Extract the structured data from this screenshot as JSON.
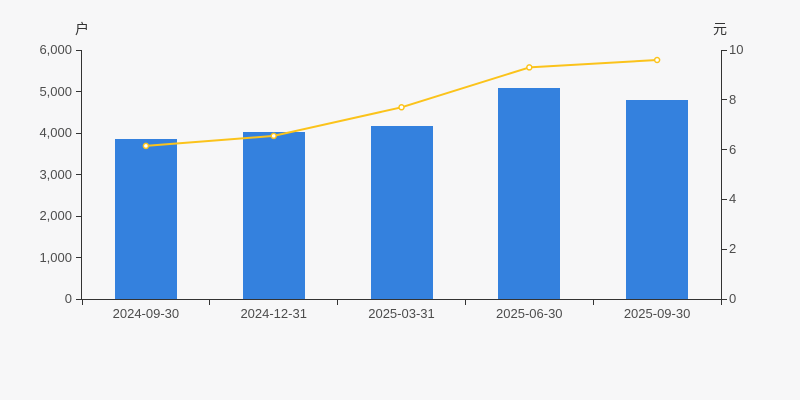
{
  "colors": {
    "background": "#f7f7f8",
    "bar": "#3481de",
    "line": "#fbc31b",
    "marker_fill": "#ffffff",
    "axis": "#333333",
    "text": "#4d4d4d",
    "unit_text": "#333333"
  },
  "chart_data": {
    "type": "combo-bar-line",
    "categories": [
      "2024-09-30",
      "2024-12-31",
      "2025-03-31",
      "2025-06-30",
      "2025-09-30"
    ],
    "series": [
      {
        "id": "bar-series",
        "type": "bar",
        "axis": "left",
        "color": "#3481de",
        "values": [
          3850,
          4020,
          4180,
          5080,
          4800
        ]
      },
      {
        "id": "line-series",
        "type": "line",
        "axis": "right",
        "color": "#fbc31b",
        "marker": "open-circle",
        "values": [
          6.15,
          6.55,
          7.7,
          9.3,
          9.6
        ]
      }
    ],
    "left_axis": {
      "unit": "户",
      "min": 0,
      "max": 6000,
      "tick_step": 1000,
      "tick_labels": [
        "0",
        "1,000",
        "2,000",
        "3,000",
        "4,000",
        "5,000",
        "6,000"
      ]
    },
    "right_axis": {
      "unit": "元",
      "min": 0,
      "max": 10,
      "tick_step": 2,
      "tick_labels": [
        "0",
        "2",
        "4",
        "6",
        "8",
        "10"
      ]
    },
    "grid": false,
    "legend": false,
    "title": ""
  }
}
